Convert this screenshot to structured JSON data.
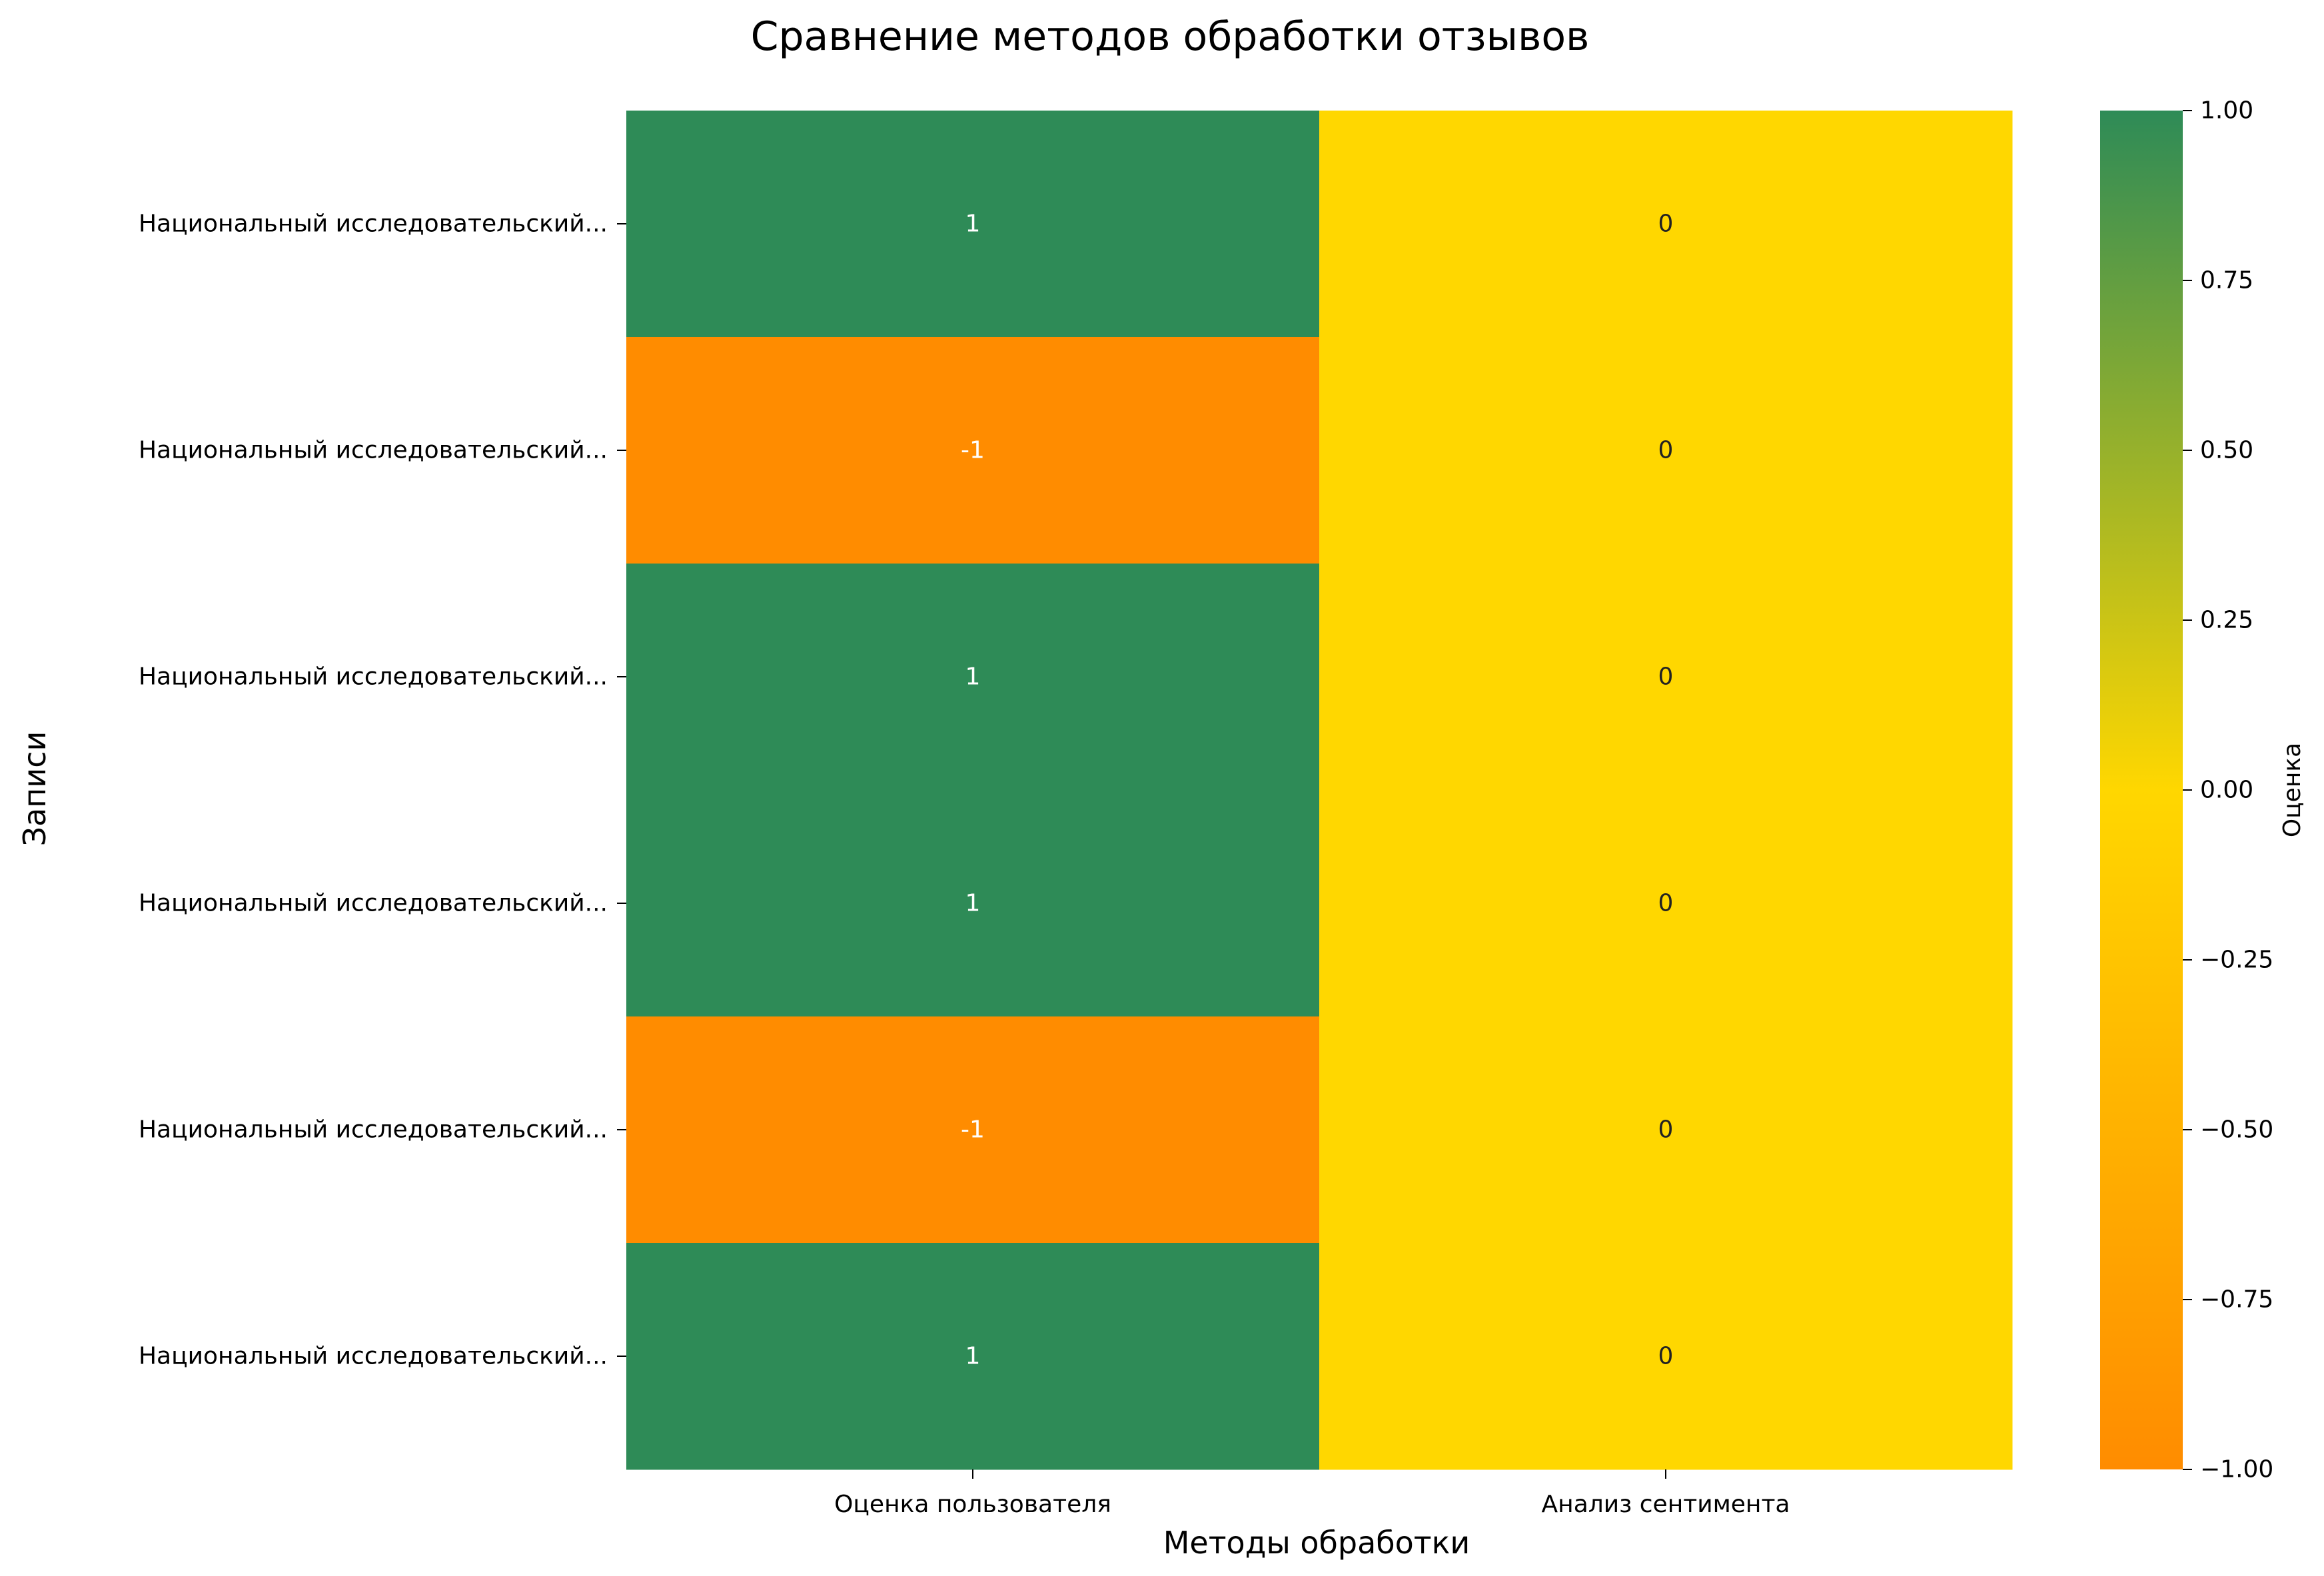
{
  "chart_data": {
    "type": "heatmap",
    "title": "Сравнение методов обработки отзывов",
    "xlabel": "Методы обработки",
    "ylabel": "Записи",
    "columns": [
      "Оценка пользователя",
      "Анализ сентимента"
    ],
    "rows": [
      "Национальный исследовательский...",
      "Национальный исследовательский...",
      "Национальный исследовательский...",
      "Национальный исследовательский...",
      "Национальный исследовательский...",
      "Национальный исследовательский..."
    ],
    "values": [
      [
        1,
        0
      ],
      [
        -1,
        0
      ],
      [
        1,
        0
      ],
      [
        1,
        0
      ],
      [
        -1,
        0
      ],
      [
        1,
        0
      ]
    ],
    "value_labels": [
      [
        "1",
        "0"
      ],
      [
        "-1",
        "0"
      ],
      [
        "1",
        "0"
      ],
      [
        "1",
        "0"
      ],
      [
        "-1",
        "0"
      ],
      [
        "1",
        "0"
      ]
    ],
    "vmin": -1,
    "vmax": 1,
    "colorbar": {
      "label": "Оценка",
      "ticks": [
        1.0,
        0.75,
        0.5,
        0.25,
        0.0,
        -0.25,
        -0.5,
        -0.75,
        -1.0
      ],
      "tick_labels": [
        "1.00",
        "0.75",
        "0.50",
        "0.25",
        "0.00",
        "−0.25",
        "−0.50",
        "−0.75",
        "−1.00"
      ],
      "colors": {
        "low": "#ff8c00",
        "mid": "#ffd700",
        "high": "#2e8b57"
      }
    }
  }
}
